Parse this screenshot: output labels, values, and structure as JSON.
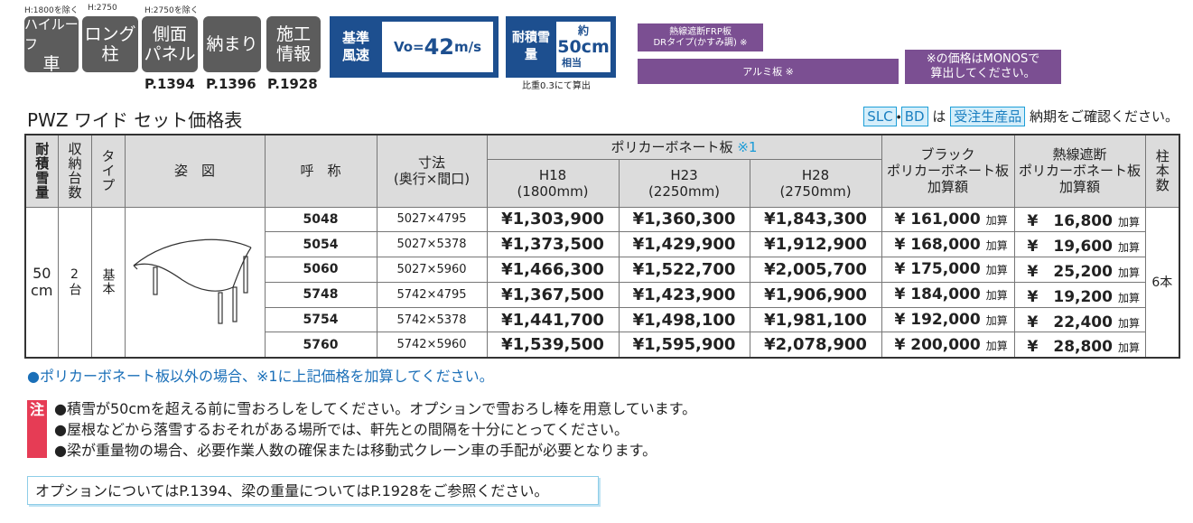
{
  "nav": {
    "notes": [
      "H:1800を除く",
      "H:2750",
      "H:2750を除く"
    ],
    "buttons": [
      [
        "ハイルーフ",
        "車"
      ],
      [
        "ロング",
        "柱"
      ],
      [
        "側面",
        "パネル"
      ],
      [
        "納まり"
      ],
      [
        "施工",
        "情報"
      ]
    ],
    "pages": [
      "P.1394",
      "P.1396",
      "P.1928"
    ]
  },
  "wind": {
    "label": [
      "基準",
      "風速"
    ],
    "value": [
      "Vo=",
      "42",
      "m/s"
    ]
  },
  "snow": {
    "label": [
      "耐積雪",
      "量"
    ],
    "value": [
      "約",
      "50cm",
      "相当"
    ],
    "note": "比重0.3にて算出"
  },
  "options": {
    "frp": [
      "熱線遮断FRP板",
      "DRタイプ(かすみ調) ※"
    ],
    "alumi": "アルミ板 ※",
    "monos": [
      "※の価格はMONOSで",
      "算出してください。"
    ]
  },
  "title": "PWZ ワイド セット価格表",
  "order_note": {
    "slc": "SLC",
    "dot": "・",
    "bd": "BD",
    "ha": "は",
    "made_to_order": "受注生産品",
    "text": "納期をご確認ください。"
  },
  "table": {
    "headers": {
      "snow": "耐積雪量",
      "capacity": "収納台数",
      "type": "タイプ",
      "figure": "姿　図",
      "name": "呼　称",
      "size": [
        "寸法",
        "(奥行×間口)"
      ],
      "poly": "ポリカーボネート板",
      "poly_mark": "※1",
      "h18": [
        "H18",
        "(1800mm)"
      ],
      "h23": [
        "H23",
        "(2250mm)"
      ],
      "h28": [
        "H28",
        "(2750mm)"
      ],
      "black": [
        "ブラック",
        "ポリカーボネート板",
        "加算額"
      ],
      "heat": [
        "熱線遮断",
        "ポリカーボネート板",
        "加算額"
      ],
      "pillars": "柱本数"
    },
    "shared": {
      "snow": [
        "50",
        "cm"
      ],
      "capacity": "2台",
      "type": "基本",
      "pillars": "6本"
    },
    "rows": [
      {
        "name": "5048",
        "size": "5027×4795",
        "h18": "¥1,303,900",
        "h23": "¥1,360,300",
        "h28": "¥1,843,300",
        "black": "¥ 161,000",
        "black_suffix": "加算",
        "heat": "¥　16,800",
        "heat_suffix": "加算"
      },
      {
        "name": "5054",
        "size": "5027×5378",
        "h18": "¥1,373,500",
        "h23": "¥1,429,900",
        "h28": "¥1,912,900",
        "black": "¥ 168,000",
        "black_suffix": "加算",
        "heat": "¥　19,600",
        "heat_suffix": "加算"
      },
      {
        "name": "5060",
        "size": "5027×5960",
        "h18": "¥1,466,300",
        "h23": "¥1,522,700",
        "h28": "¥2,005,700",
        "black": "¥ 175,000",
        "black_suffix": "加算",
        "heat": "¥　25,200",
        "heat_suffix": "加算"
      },
      {
        "name": "5748",
        "size": "5742×4795",
        "h18": "¥1,367,500",
        "h23": "¥1,423,900",
        "h28": "¥1,906,900",
        "black": "¥ 184,000",
        "black_suffix": "加算",
        "heat": "¥　19,200",
        "heat_suffix": "加算"
      },
      {
        "name": "5754",
        "size": "5742×5378",
        "h18": "¥1,441,700",
        "h23": "¥1,498,100",
        "h28": "¥1,981,100",
        "black": "¥ 192,000",
        "black_suffix": "加算",
        "heat": "¥　22,400",
        "heat_suffix": "加算"
      },
      {
        "name": "5760",
        "size": "5742×5960",
        "h18": "¥1,539,500",
        "h23": "¥1,595,900",
        "h28": "¥2,078,900",
        "black": "¥ 200,000",
        "black_suffix": "加算",
        "heat": "¥　28,800",
        "heat_suffix": "加算"
      }
    ]
  },
  "poly_note": "●ポリカーボネート板以外の場合、※1に上記価格を加算してください。",
  "caution": {
    "mark": "注",
    "items": [
      "●積雪が50cmを超える前に雪おろしをしてください。オプションで雪おろし棒を用意しています。",
      "●屋根などから落雪するおそれがある場所では、軒先との間隔を十分にとってください。",
      "●梁が重量物の場合、必要作業人数の確保または移動式クレーン車の手配が必要となります。"
    ]
  },
  "reference": "オプションについてはP.1394、梁の重量についてはP.1928をご参照ください。"
}
